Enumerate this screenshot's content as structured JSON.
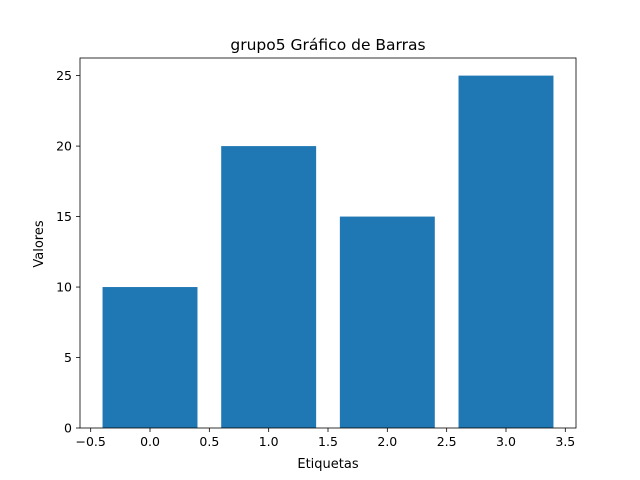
{
  "chart_data": {
    "type": "bar",
    "title": "grupo5 Gráfico de Barras",
    "xlabel": "Etiquetas",
    "ylabel": "Valores",
    "x": [
      0,
      1,
      2,
      3
    ],
    "values": [
      10,
      20,
      15,
      25
    ],
    "bar_width": 0.8,
    "xlim": [
      -0.59,
      3.59
    ],
    "ylim": [
      0,
      26.25
    ],
    "xticks": [
      -0.5,
      0.0,
      0.5,
      1.0,
      1.5,
      2.0,
      2.5,
      3.0,
      3.5
    ],
    "xtick_labels": [
      "−0.5",
      "0.0",
      "0.5",
      "1.0",
      "1.5",
      "2.0",
      "2.5",
      "3.0",
      "3.5"
    ],
    "yticks": [
      0,
      5,
      10,
      15,
      20,
      25
    ],
    "ytick_labels": [
      "0",
      "5",
      "10",
      "15",
      "20",
      "25"
    ],
    "bar_color": "#1f77b4",
    "grid": false,
    "legend": "none"
  }
}
